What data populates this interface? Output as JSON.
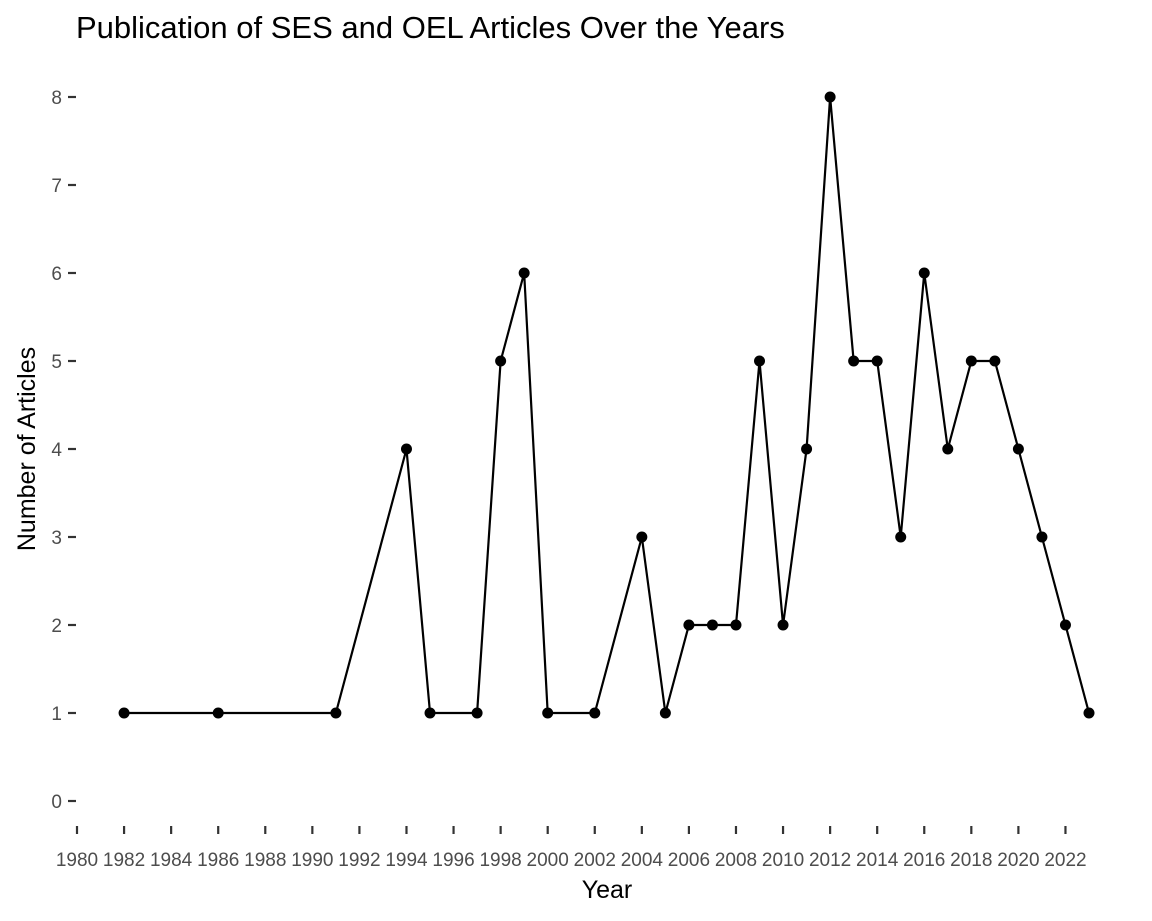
{
  "chart_data": {
    "type": "line",
    "title": "Publication of SES and OEL Articles Over the Years",
    "xlabel": "Year",
    "ylabel": "Number of Articles",
    "xlim": [
      1980,
      2023
    ],
    "ylim": [
      0,
      8
    ],
    "x_ticks": [
      1980,
      1982,
      1984,
      1986,
      1988,
      1990,
      1992,
      1994,
      1996,
      1998,
      2000,
      2002,
      2004,
      2006,
      2008,
      2010,
      2012,
      2014,
      2016,
      2018,
      2020,
      2022
    ],
    "y_ticks": [
      0,
      1,
      2,
      3,
      4,
      5,
      6,
      7,
      8
    ],
    "grid": false,
    "legend": "none",
    "line_color": "#000000",
    "x": [
      1982,
      1986,
      1991,
      1994,
      1995,
      1997,
      1998,
      1999,
      2000,
      2002,
      2004,
      2005,
      2006,
      2007,
      2008,
      2009,
      2010,
      2011,
      2012,
      2013,
      2014,
      2015,
      2016,
      2017,
      2018,
      2019,
      2020,
      2021,
      2022,
      2023
    ],
    "y": [
      1,
      1,
      1,
      4,
      1,
      1,
      5,
      6,
      1,
      1,
      3,
      1,
      2,
      2,
      2,
      5,
      2,
      4,
      8,
      5,
      5,
      3,
      6,
      4,
      5,
      5,
      4,
      3,
      2,
      1
    ]
  }
}
